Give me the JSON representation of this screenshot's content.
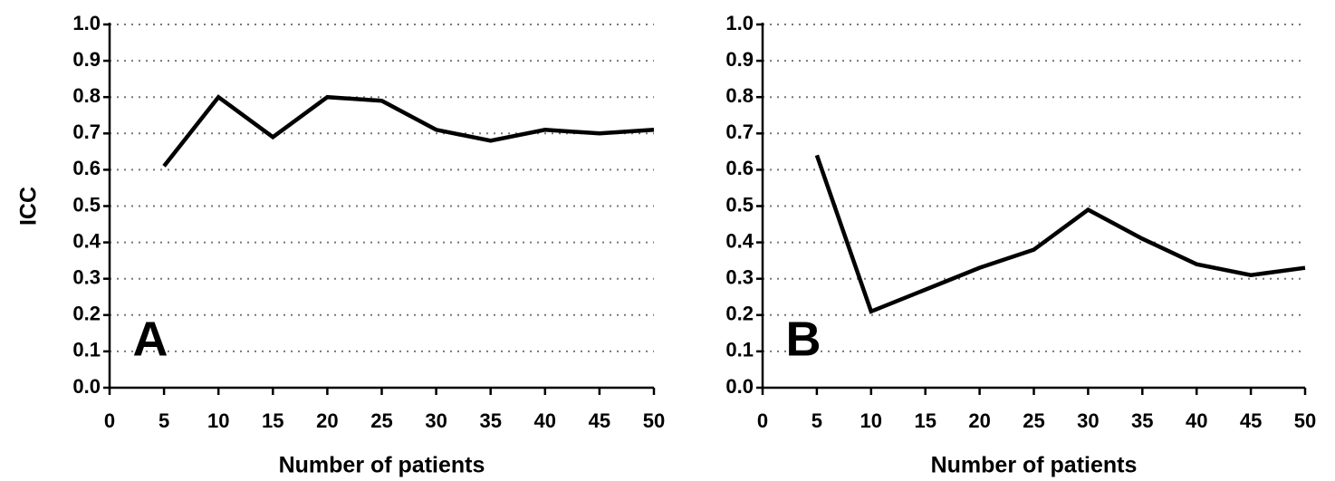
{
  "chart_data": [
    {
      "type": "line",
      "ylabel": "ICC",
      "xlabel": "Number of patients",
      "annotation": "A",
      "x": [
        5,
        10,
        15,
        20,
        25,
        30,
        35,
        40,
        45,
        50
      ],
      "values": [
        0.61,
        0.8,
        0.69,
        0.8,
        0.79,
        0.71,
        0.68,
        0.71,
        0.7,
        0.71
      ],
      "color": "#000000",
      "xlim": [
        0,
        50
      ],
      "xticks": [
        0,
        5,
        10,
        15,
        20,
        25,
        30,
        35,
        40,
        45,
        50
      ],
      "ylim": [
        0,
        1
      ],
      "yticks": [
        {
          "value": 0,
          "label": "0.0"
        },
        0.1,
        0.2,
        0.3,
        0.4,
        0.5,
        0.6,
        0.7,
        0.8,
        0.9,
        {
          "value": 1,
          "label": "1.0"
        }
      ],
      "grid": true
    },
    {
      "type": "line",
      "xlabel": "Number of patients",
      "annotation": "B",
      "x": [
        5,
        10,
        15,
        20,
        25,
        30,
        35,
        40,
        45,
        50
      ],
      "values": [
        0.64,
        0.21,
        0.27,
        0.33,
        0.38,
        0.49,
        0.41,
        0.34,
        0.31,
        0.33
      ],
      "color": "#000000",
      "xlim": [
        0,
        50
      ],
      "xticks": [
        0,
        5,
        10,
        15,
        20,
        25,
        30,
        35,
        40,
        45,
        50
      ],
      "ylim": [
        0,
        1
      ],
      "yticks": [
        {
          "value": 0,
          "label": "0.0"
        },
        0.1,
        0.2,
        0.3,
        0.4,
        0.5,
        0.6,
        0.7,
        0.8,
        0.9,
        {
          "value": 1,
          "label": "1.0"
        }
      ],
      "grid": true
    }
  ]
}
